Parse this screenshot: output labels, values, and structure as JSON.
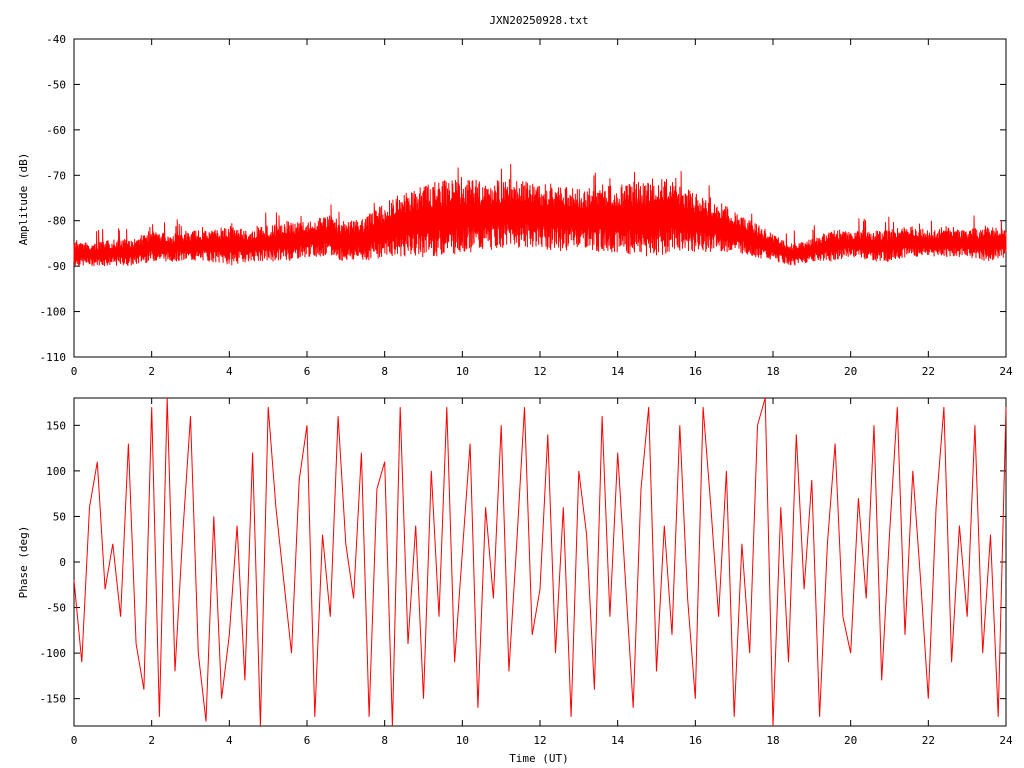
{
  "chart_data": [
    {
      "type": "line",
      "title": "JXN20250928.txt",
      "xlabel": "",
      "ylabel": "Amplitude (dB)",
      "xlim": [
        0,
        24
      ],
      "ylim": [
        -110,
        -40
      ],
      "xticks": [
        "0",
        "2",
        "4",
        "6",
        "8",
        "10",
        "12",
        "14",
        "16",
        "18",
        "20",
        "22",
        "24"
      ],
      "yticks": [
        "-110",
        "-100",
        "-90",
        "-80",
        "-70",
        "-60",
        "-50",
        "-40"
      ],
      "grid": false,
      "color": "#ff0000",
      "series": [
        {
          "envelope_upper": {
            "x": [
              0,
              0.5,
              1,
              1.5,
              2,
              2.5,
              3,
              3.5,
              4,
              4.5,
              5,
              5.5,
              6,
              6.5,
              7,
              7.5,
              8,
              8.5,
              9,
              9.5,
              10,
              10.5,
              11,
              11.5,
              12,
              12.5,
              13,
              13.5,
              14,
              14.5,
              15,
              15.5,
              16,
              16.5,
              17,
              17.5,
              18,
              18.5,
              19,
              19.5,
              20,
              20.5,
              21,
              21.5,
              22,
              22.5,
              23,
              23.5,
              24
            ],
            "y": [
              -84,
              -85,
              -84,
              -84,
              -82,
              -83,
              -82,
              -82,
              -81,
              -82,
              -81,
              -80,
              -80,
              -79,
              -80,
              -79,
              -76,
              -74,
              -72,
              -71,
              -71,
              -71,
              -71,
              -70,
              -72,
              -71,
              -73,
              -72,
              -72,
              -71,
              -70,
              -71,
              -74,
              -75,
              -78,
              -80,
              -83,
              -85,
              -84,
              -82,
              -82,
              -82,
              -82,
              -81,
              -82,
              -81,
              -82,
              -81,
              -82
            ]
          },
          "envelope_lower": {
            "x": [
              0,
              0.5,
              1,
              1.5,
              2,
              2.5,
              3,
              3.5,
              4,
              4.5,
              5,
              5.5,
              6,
              6.5,
              7,
              7.5,
              8,
              8.5,
              9,
              9.5,
              10,
              10.5,
              11,
              11.5,
              12,
              12.5,
              13,
              13.5,
              14,
              14.5,
              15,
              15.5,
              16,
              16.5,
              17,
              17.5,
              18,
              18.5,
              19,
              19.5,
              20,
              20.5,
              21,
              21.5,
              22,
              22.5,
              23,
              23.5,
              24
            ],
            "y": [
              -90,
              -90,
              -90,
              -90,
              -89,
              -89,
              -89,
              -89,
              -90,
              -89,
              -89,
              -89,
              -88,
              -88,
              -89,
              -89,
              -88,
              -88,
              -88,
              -88,
              -87,
              -87,
              -86,
              -86,
              -86,
              -87,
              -86,
              -87,
              -87,
              -88,
              -88,
              -87,
              -87,
              -87,
              -87,
              -88,
              -89,
              -90,
              -89,
              -89,
              -88,
              -89,
              -89,
              -88,
              -88,
              -88,
              -88,
              -89,
              -88
            ]
          }
        }
      ]
    },
    {
      "type": "line",
      "title": "",
      "xlabel": "Time (UT)",
      "ylabel": "Phase (deg)",
      "xlim": [
        0,
        24
      ],
      "ylim": [
        -180,
        180
      ],
      "xticks": [
        "0",
        "2",
        "4",
        "6",
        "8",
        "10",
        "12",
        "14",
        "16",
        "18",
        "20",
        "22",
        "24"
      ],
      "yticks": [
        "-150",
        "-100",
        "-50",
        "0",
        "50",
        "100",
        "150"
      ],
      "grid": false,
      "color": "#ff0000",
      "series": [
        {
          "x": [
            0,
            0.2,
            0.4,
            0.6,
            0.8,
            1,
            1.2,
            1.4,
            1.6,
            1.8,
            2,
            2.2,
            2.4,
            2.6,
            2.8,
            3,
            3.2,
            3.4,
            3.6,
            3.8,
            4,
            4.2,
            4.4,
            4.6,
            4.8,
            5,
            5.2,
            5.4,
            5.6,
            5.8,
            6,
            6.2,
            6.4,
            6.6,
            6.8,
            7,
            7.2,
            7.4,
            7.6,
            7.8,
            8,
            8.2,
            8.4,
            8.6,
            8.8,
            9,
            9.2,
            9.4,
            9.6,
            9.8,
            10,
            10.2,
            10.4,
            10.6,
            10.8,
            11,
            11.2,
            11.4,
            11.6,
            11.8,
            12,
            12.2,
            12.4,
            12.6,
            12.8,
            13,
            13.2,
            13.4,
            13.6,
            13.8,
            14,
            14.2,
            14.4,
            14.6,
            14.8,
            15,
            15.2,
            15.4,
            15.6,
            15.8,
            16,
            16.2,
            16.4,
            16.6,
            16.8,
            17,
            17.2,
            17.4,
            17.6,
            17.8,
            18,
            18.2,
            18.4,
            18.6,
            18.8,
            19,
            19.2,
            19.4,
            19.6,
            19.8,
            20,
            20.2,
            20.4,
            20.6,
            20.8,
            21,
            21.2,
            21.4,
            21.6,
            21.8,
            22,
            22.2,
            22.4,
            22.6,
            22.8,
            23,
            23.2,
            23.4,
            23.6,
            23.8,
            24
          ],
          "y": [
            -20,
            -110,
            60,
            110,
            -30,
            20,
            -60,
            130,
            -90,
            -140,
            170,
            -170,
            180,
            -120,
            30,
            160,
            -100,
            -175,
            50,
            -150,
            -80,
            40,
            -130,
            120,
            -180,
            170,
            60,
            -20,
            -100,
            90,
            150,
            -170,
            30,
            -60,
            160,
            20,
            -40,
            120,
            -170,
            80,
            110,
            -180,
            170,
            -90,
            40,
            -150,
            100,
            -60,
            170,
            -110,
            10,
            130,
            -160,
            60,
            -40,
            150,
            -120,
            20,
            170,
            -80,
            -30,
            140,
            -100,
            60,
            -170,
            100,
            30,
            -140,
            160,
            -60,
            120,
            -20,
            -160,
            80,
            170,
            -120,
            40,
            -80,
            150,
            -40,
            -150,
            170,
            60,
            -60,
            100,
            -170,
            20,
            -100,
            150,
            180,
            -180,
            60,
            -110,
            140,
            -30,
            90,
            -170,
            20,
            130,
            -60,
            -100,
            70,
            -40,
            150,
            -130,
            30,
            170,
            -80,
            100,
            -20,
            -150,
            60,
            170,
            -110,
            40,
            -60,
            150,
            -100,
            30,
            -170,
            170
          ]
        }
      ]
    }
  ]
}
